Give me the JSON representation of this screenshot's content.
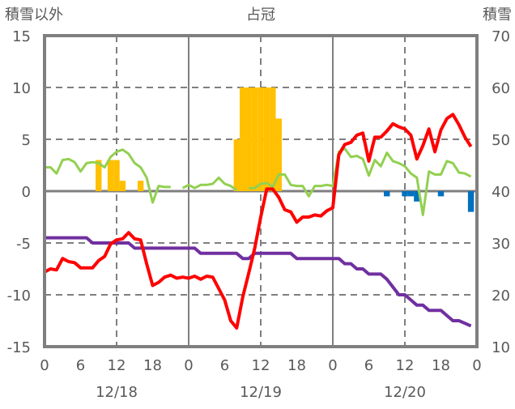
{
  "chart_data": {
    "type": "bar+line",
    "title": "占冠",
    "left_axis_title": "積雪以外",
    "right_axis_title": "積雪",
    "left_ylim": [
      -15,
      15
    ],
    "left_ticks": [
      "15",
      "10",
      "5",
      "0",
      "-5",
      "-10",
      "-15"
    ],
    "right_ylim": [
      10,
      70
    ],
    "right_ticks": [
      "70",
      "60",
      "50",
      "40",
      "30",
      "20",
      "10"
    ],
    "xlim_hours": [
      0,
      72
    ],
    "x_tick_labels": [
      "0",
      "6",
      "12",
      "18",
      "0",
      "6",
      "12",
      "18",
      "0",
      "6",
      "12",
      "18",
      "0"
    ],
    "date_labels": [
      "12/18",
      "12/19",
      "12/20"
    ],
    "grid": "dashed at 12h marks and every 5 units; solid at day boundaries",
    "colors": {
      "temperature": "#ff0000",
      "green": "#92d050",
      "snow_depth": "#7030a0",
      "snowfall": "#ffc000",
      "decrease": "#0070c0",
      "axis": "#7f7f7f"
    },
    "bars_snowfall": [
      [
        9,
        3
      ],
      [
        11,
        3
      ],
      [
        12,
        3
      ],
      [
        13,
        1
      ],
      [
        16,
        1
      ],
      [
        32,
        5
      ],
      [
        33,
        10
      ],
      [
        34,
        10
      ],
      [
        35,
        10
      ],
      [
        36,
        10
      ],
      [
        37,
        10
      ],
      [
        38,
        10
      ],
      [
        39,
        7
      ]
    ],
    "bars_negative": [
      [
        57,
        -0.5
      ],
      [
        60,
        -0.5
      ],
      [
        61,
        -0.5
      ],
      [
        62,
        -1
      ],
      [
        66,
        -0.5
      ],
      [
        71,
        -2
      ]
    ],
    "series": [
      {
        "name": "red",
        "axis": "left",
        "color": "#ff0000",
        "values": [
          -7.8,
          -7.5,
          -7.6,
          -6.5,
          -6.8,
          -6.9,
          -7.4,
          -7.4,
          -7.4,
          -6.7,
          -6.3,
          -5.1,
          -4.7,
          -4.6,
          -4.0,
          -4.6,
          -4.7,
          -7.0,
          -9.1,
          -8.8,
          -8.3,
          -8.1,
          -8.4,
          -8.3,
          -8.4,
          -8.2,
          -8.5,
          -8.2,
          -8.3,
          -9.4,
          -10.5,
          -12.5,
          -13.2,
          -10.2,
          -7.9,
          -5.5,
          -2.5,
          0.2,
          0.2,
          -0.6,
          -1.8,
          -2.0,
          -3.0,
          -2.5,
          -2.5,
          -2.3,
          -2.4,
          -1.9,
          -1.6,
          3.5,
          4.5,
          4.7,
          5.4,
          5.6,
          2.9,
          5.2,
          5.2,
          5.8,
          6.5,
          6.2,
          6.0,
          5.4,
          3.1,
          4.4,
          6.0,
          3.8,
          5.9,
          7.0,
          7.4,
          6.4,
          5.2,
          4.3
        ]
      },
      {
        "name": "green",
        "axis": "left",
        "color": "#92d050",
        "values": [
          2.3,
          2.3,
          1.7,
          3.0,
          3.1,
          2.8,
          1.9,
          2.7,
          2.8,
          2.7,
          2.3,
          3.3,
          3.8,
          4.0,
          3.6,
          2.7,
          2.3,
          1.3,
          -1.1,
          0.5,
          0.4,
          0.4,
          null,
          0.3,
          0.6,
          0.3,
          0.6,
          0.6,
          0.7,
          1.3,
          0.7,
          0.5,
          0.1,
          null,
          0.3,
          0.3,
          0.7,
          0.8,
          0.4,
          1.6,
          1.6,
          0.6,
          0.5,
          0.5,
          -0.5,
          0.5,
          0.5,
          0.6,
          0.5,
          3.8,
          4.1,
          3.3,
          3.4,
          3.1,
          1.5,
          3.0,
          2.4,
          3.7,
          2.9,
          2.7,
          2.4,
          1.7,
          1.3,
          -2.3,
          1.9,
          1.6,
          1.6,
          2.9,
          2.7,
          1.8,
          1.7,
          1.4
        ]
      },
      {
        "name": "snow_depth",
        "axis": "right",
        "color": "#7030a0",
        "values": [
          31,
          31,
          31,
          31,
          31,
          31,
          31,
          31,
          30,
          30,
          30,
          30,
          30,
          30,
          30,
          29,
          29,
          29,
          29,
          29,
          29,
          29,
          29,
          29,
          29,
          29,
          28,
          28,
          28,
          28,
          28,
          28,
          28,
          27,
          27,
          28,
          28,
          28,
          28,
          28,
          28,
          28,
          27,
          27,
          27,
          27,
          27,
          27,
          27,
          27,
          26,
          26,
          25,
          25,
          24,
          24,
          24,
          23,
          21.5,
          20,
          20,
          19,
          18,
          18,
          17,
          17,
          17,
          16,
          15,
          15,
          14.5,
          14
        ]
      }
    ]
  }
}
